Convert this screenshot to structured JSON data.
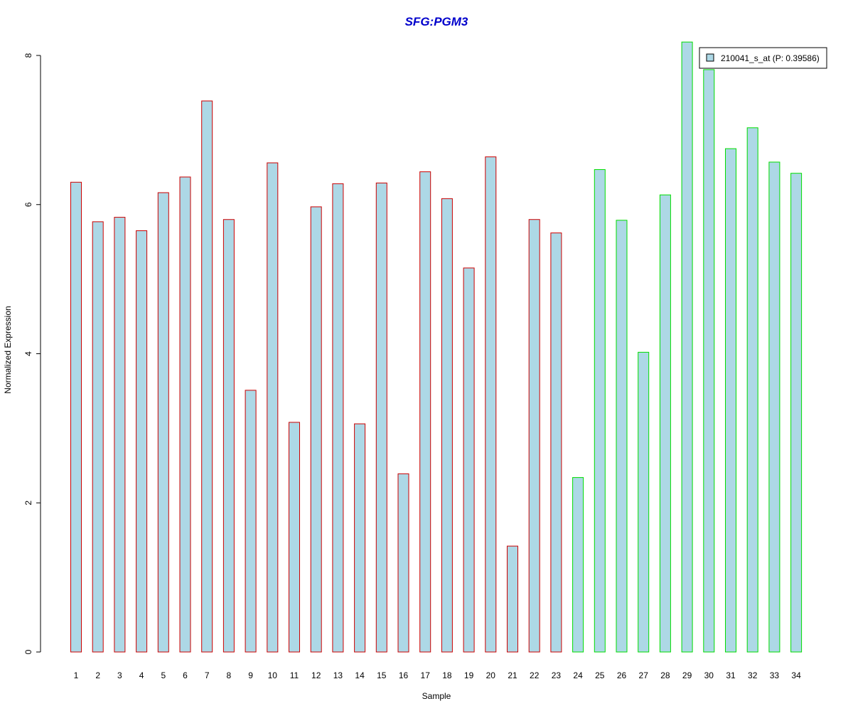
{
  "chart_data": {
    "type": "bar",
    "title": "SFG:PGM3",
    "xlabel": "Sample",
    "ylabel": "Normalized Expression",
    "categories": [
      "1",
      "2",
      "3",
      "4",
      "5",
      "6",
      "7",
      "8",
      "9",
      "10",
      "11",
      "12",
      "13",
      "14",
      "15",
      "16",
      "17",
      "18",
      "19",
      "20",
      "21",
      "22",
      "23",
      "24",
      "25",
      "26",
      "27",
      "28",
      "29",
      "30",
      "31",
      "32",
      "33",
      "34"
    ],
    "series": [
      {
        "name": "210041_s_at (P: 0.39586)",
        "values": [
          6.3,
          5.77,
          5.83,
          5.65,
          6.16,
          6.37,
          7.39,
          5.8,
          3.51,
          6.56,
          3.08,
          5.97,
          6.28,
          3.06,
          6.29,
          2.39,
          6.44,
          6.08,
          5.15,
          6.64,
          1.42,
          5.8,
          5.62,
          2.34,
          6.47,
          5.79,
          4.02,
          6.13,
          8.18,
          7.81,
          6.75,
          7.03,
          6.57,
          6.42
        ]
      }
    ],
    "group_of_each_bar": [
      "a",
      "a",
      "a",
      "a",
      "a",
      "a",
      "a",
      "a",
      "a",
      "a",
      "a",
      "a",
      "a",
      "a",
      "a",
      "a",
      "a",
      "a",
      "a",
      "a",
      "a",
      "a",
      "a",
      "b",
      "b",
      "b",
      "b",
      "b",
      "b",
      "b",
      "b",
      "b",
      "b",
      "b"
    ],
    "yticks": [
      "0",
      "2",
      "4",
      "6",
      "8"
    ],
    "ylim": [
      0,
      8.2
    ],
    "grid": false,
    "legend_position": "top-right",
    "colors": {
      "title": "#0000CC",
      "bar_fill": "#ADD8E6",
      "group_a_border": "#CC0000",
      "group_b_border": "#00DD00",
      "axis": "#000000"
    }
  }
}
